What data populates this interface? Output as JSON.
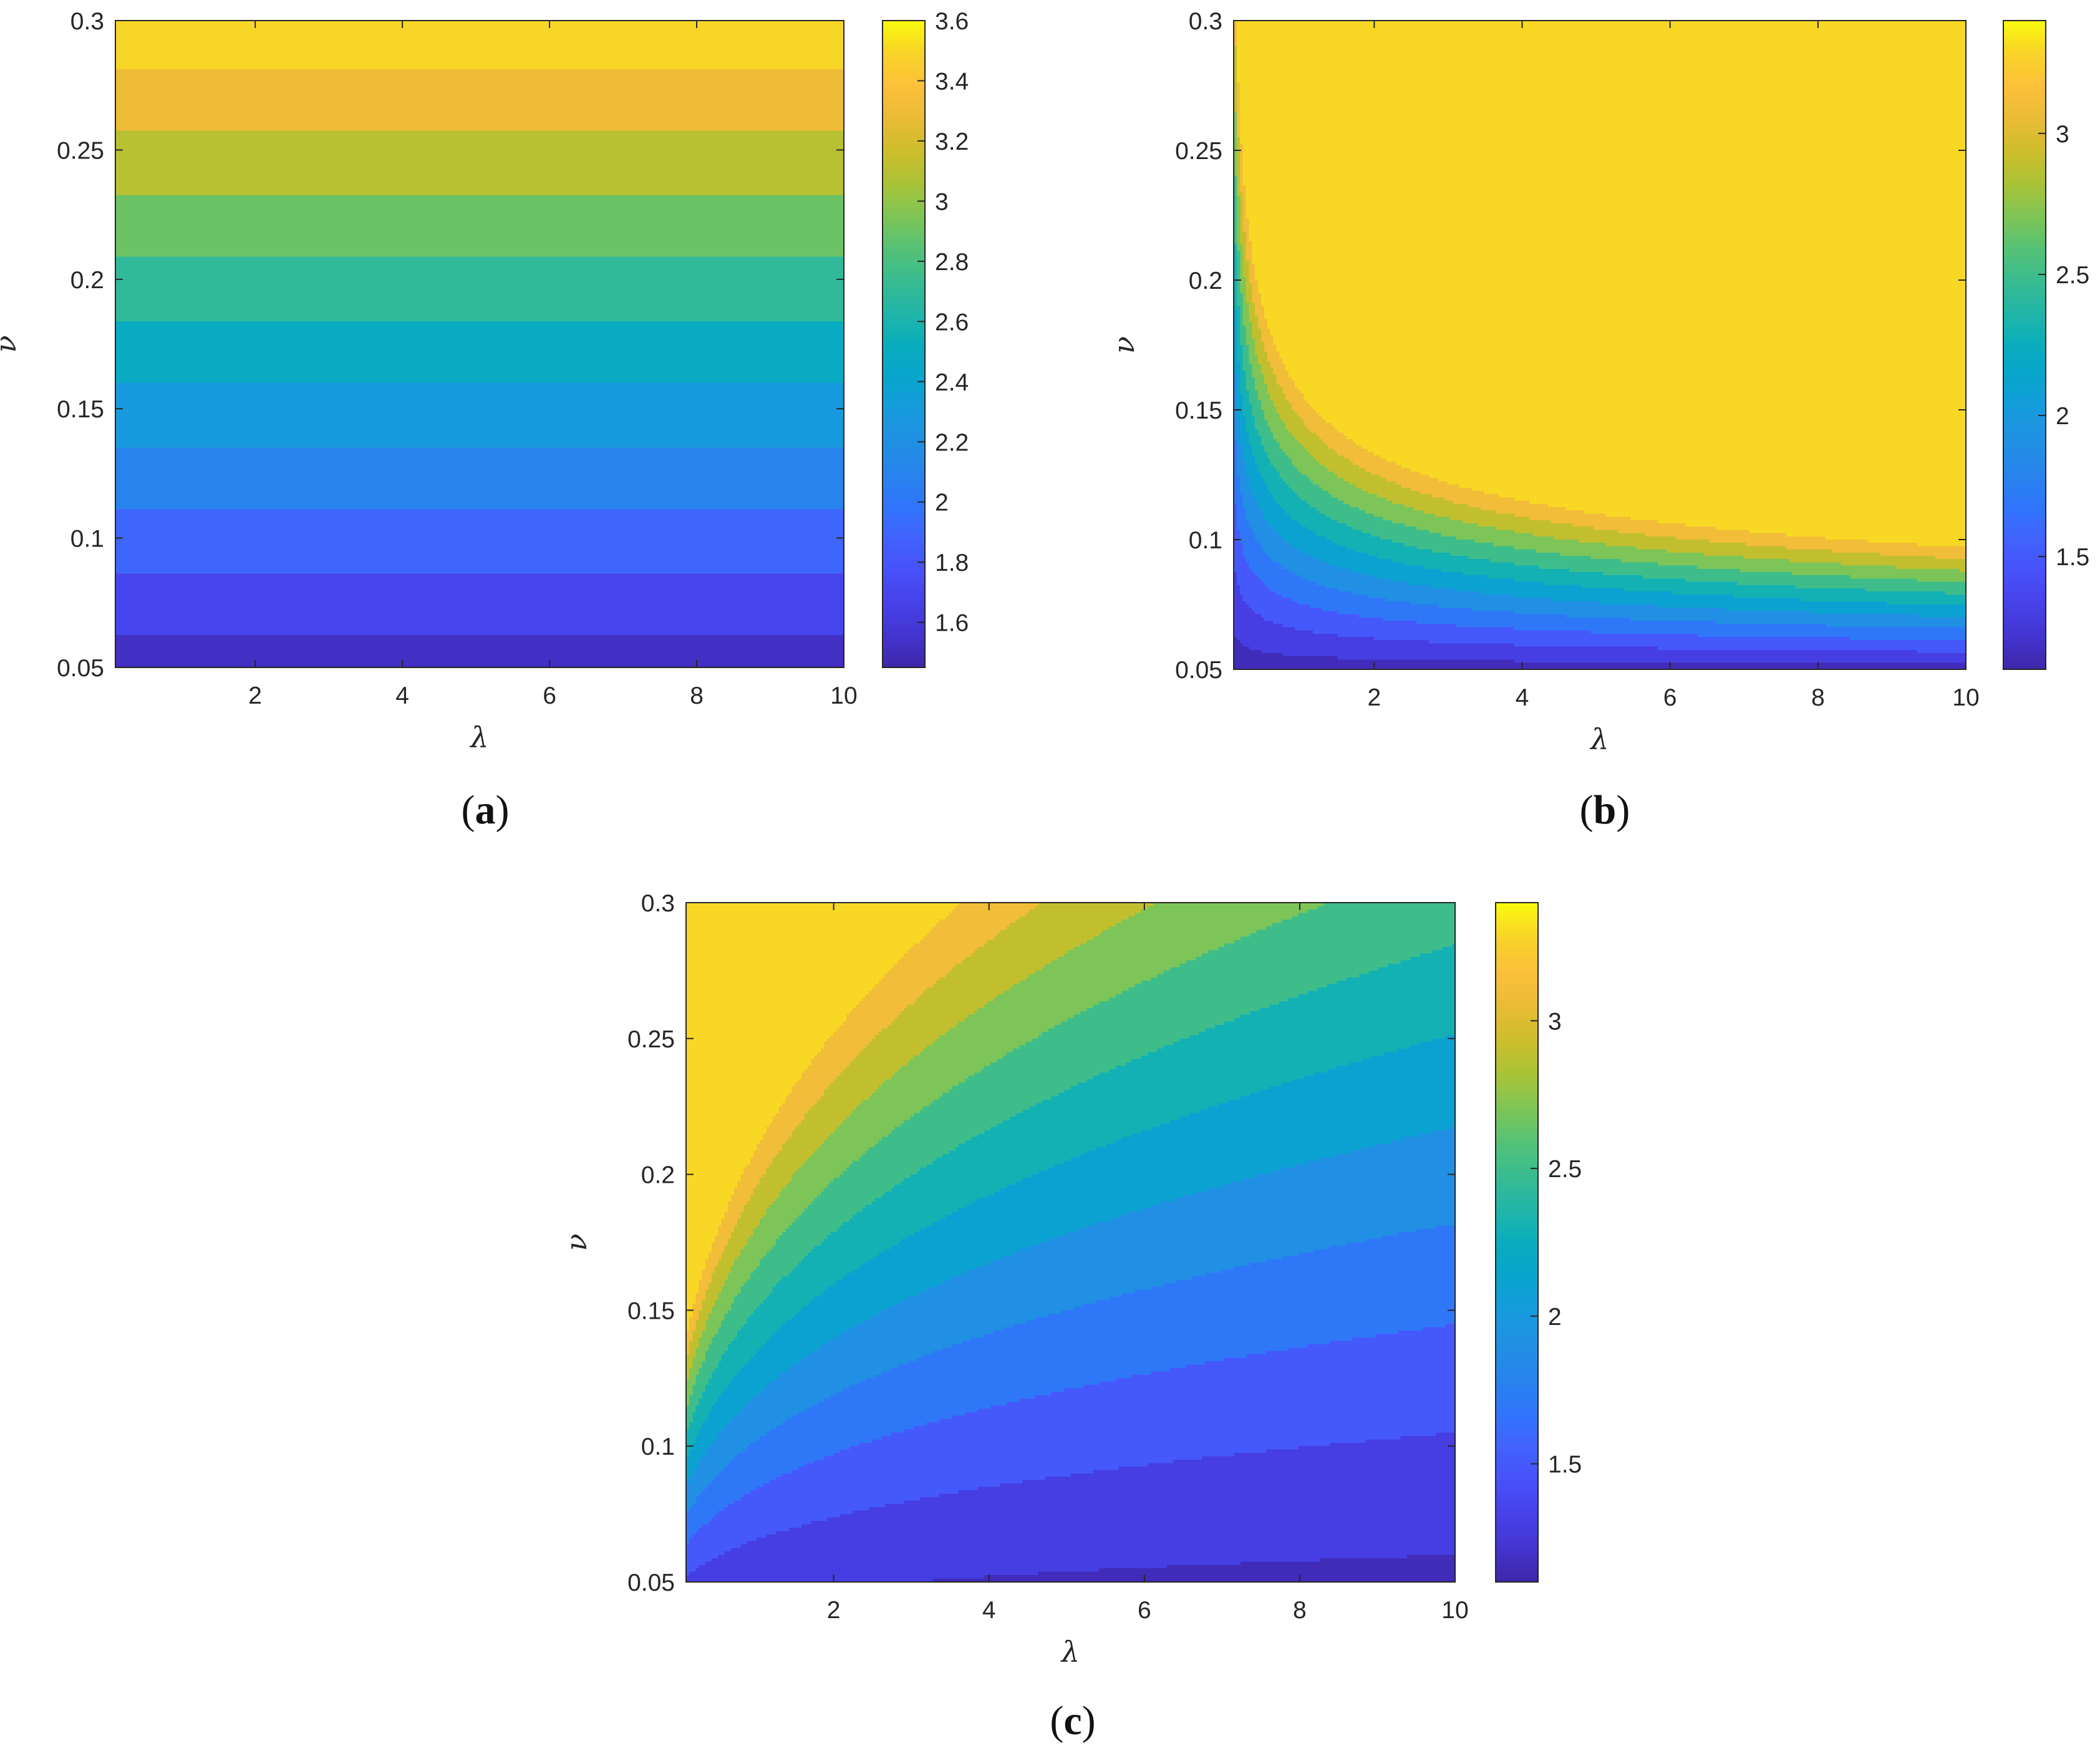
{
  "figure": {
    "panels": [
      {
        "id": "a",
        "caption_open": "(",
        "caption_letter": "a",
        "caption_close": ")"
      },
      {
        "id": "b",
        "caption_open": "(",
        "caption_letter": "b",
        "caption_close": ")"
      },
      {
        "id": "c",
        "caption_open": "(",
        "caption_letter": "c",
        "caption_close": ")"
      }
    ]
  },
  "chart_data": [
    {
      "panel": "a",
      "type": "heatmap",
      "subtype": "filled-contour",
      "title": "",
      "xlabel": "λ",
      "ylabel": "ν",
      "xlim": [
        0.1,
        10
      ],
      "ylim": [
        0.05,
        0.3
      ],
      "xticks": [
        2,
        4,
        6,
        8,
        10
      ],
      "xtick_labels": [
        "2",
        "4",
        "6",
        "8",
        "10"
      ],
      "yticks": [
        0.05,
        0.1,
        0.15,
        0.2,
        0.25,
        0.3
      ],
      "ytick_labels": [
        "0.05",
        "0.1",
        "0.15",
        "0.2",
        "0.25",
        "0.3"
      ],
      "color_range": [
        1.45,
        3.6
      ],
      "colorbar_ticks": [
        1.6,
        1.8,
        2,
        2.2,
        2.4,
        2.6,
        2.8,
        3,
        3.2,
        3.4,
        3.6
      ],
      "colorbar_tick_labels": [
        "1.6",
        "1.8",
        "2",
        "2.2",
        "2.4",
        "2.6",
        "2.8",
        "3",
        "3.2",
        "3.4",
        "3.6"
      ],
      "contour_levels": [
        1.6,
        1.8,
        2.0,
        2.2,
        2.4,
        2.6,
        2.8,
        3.0,
        3.2,
        3.4
      ],
      "field_description": "value depends on nu only (horizontal bands), increasing from about 1.5 at nu=0.05 to about 3.55 at nu=0.3",
      "grid": false,
      "colormap": "parula"
    },
    {
      "panel": "b",
      "type": "heatmap",
      "subtype": "filled-contour",
      "title": "",
      "xlabel": "λ",
      "ylabel": "ν",
      "xlim": [
        0.1,
        10
      ],
      "ylim": [
        0.05,
        0.3
      ],
      "xticks": [
        2,
        4,
        6,
        8,
        10
      ],
      "xtick_labels": [
        "2",
        "4",
        "6",
        "8",
        "10"
      ],
      "yticks": [
        0.05,
        0.1,
        0.15,
        0.2,
        0.25,
        0.3
      ],
      "ytick_labels": [
        "0.05",
        "0.1",
        "0.15",
        "0.2",
        "0.25",
        "0.3"
      ],
      "color_range": [
        1.1,
        3.4
      ],
      "colorbar_ticks": [
        1.5,
        2,
        2.5,
        3
      ],
      "colorbar_tick_labels": [
        "1.5",
        "2",
        "2.5",
        "3"
      ],
      "contour_levels": [
        1.2,
        1.4,
        1.6,
        1.8,
        2.0,
        2.2,
        2.4,
        2.6,
        2.8,
        3.0,
        3.2
      ],
      "field_description": "value increases with both lambda and nu; about 1.1 at the lower-left corner, about 3.35 at the upper-right corner",
      "grid": false,
      "colormap": "parula"
    },
    {
      "panel": "c",
      "type": "heatmap",
      "subtype": "filled-contour",
      "title": "",
      "xlabel": "λ",
      "ylabel": "ν",
      "xlim": [
        0.1,
        10
      ],
      "ylim": [
        0.05,
        0.3
      ],
      "xticks": [
        2,
        4,
        6,
        8,
        10
      ],
      "xtick_labels": [
        "2",
        "4",
        "6",
        "8",
        "10"
      ],
      "yticks": [
        0.05,
        0.1,
        0.15,
        0.2,
        0.25,
        0.3
      ],
      "ytick_labels": [
        "0.05",
        "0.1",
        "0.15",
        "0.2",
        "0.25",
        "0.3"
      ],
      "color_range": [
        1.1,
        3.4
      ],
      "colorbar_ticks": [
        1.5,
        2,
        2.5,
        3
      ],
      "colorbar_tick_labels": [
        "1.5",
        "2",
        "2.5",
        "3"
      ],
      "contour_levels": [
        1.2,
        1.4,
        1.6,
        1.8,
        2.0,
        2.2,
        2.4,
        2.6,
        2.8,
        3.0,
        3.2
      ],
      "field_description": "value increases with nu and decreases with lambda; about 3.2 at small lambda and nu=0.3, about 1.1 at large lambda and small nu",
      "grid": false,
      "colormap": "parula"
    }
  ]
}
